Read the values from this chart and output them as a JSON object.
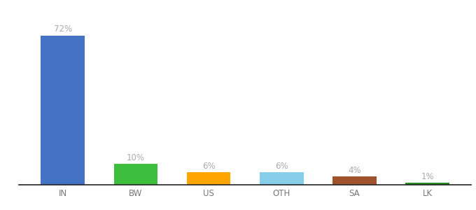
{
  "categories": [
    "IN",
    "BW",
    "US",
    "OTH",
    "SA",
    "LK"
  ],
  "values": [
    72,
    10,
    6,
    6,
    4,
    1
  ],
  "labels": [
    "72%",
    "10%",
    "6%",
    "6%",
    "4%",
    "1%"
  ],
  "bar_colors": [
    "#4472C4",
    "#3DBF3D",
    "#FFA500",
    "#87CEEB",
    "#A0522D",
    "#228B22"
  ],
  "background_color": "#ffffff",
  "ylim": [
    0,
    82
  ],
  "label_color": "#aaaaaa",
  "label_fontsize": 8.5,
  "tick_fontsize": 8.5,
  "tick_color": "#777777",
  "bottom_spine_color": "#222222",
  "bar_width": 0.6
}
